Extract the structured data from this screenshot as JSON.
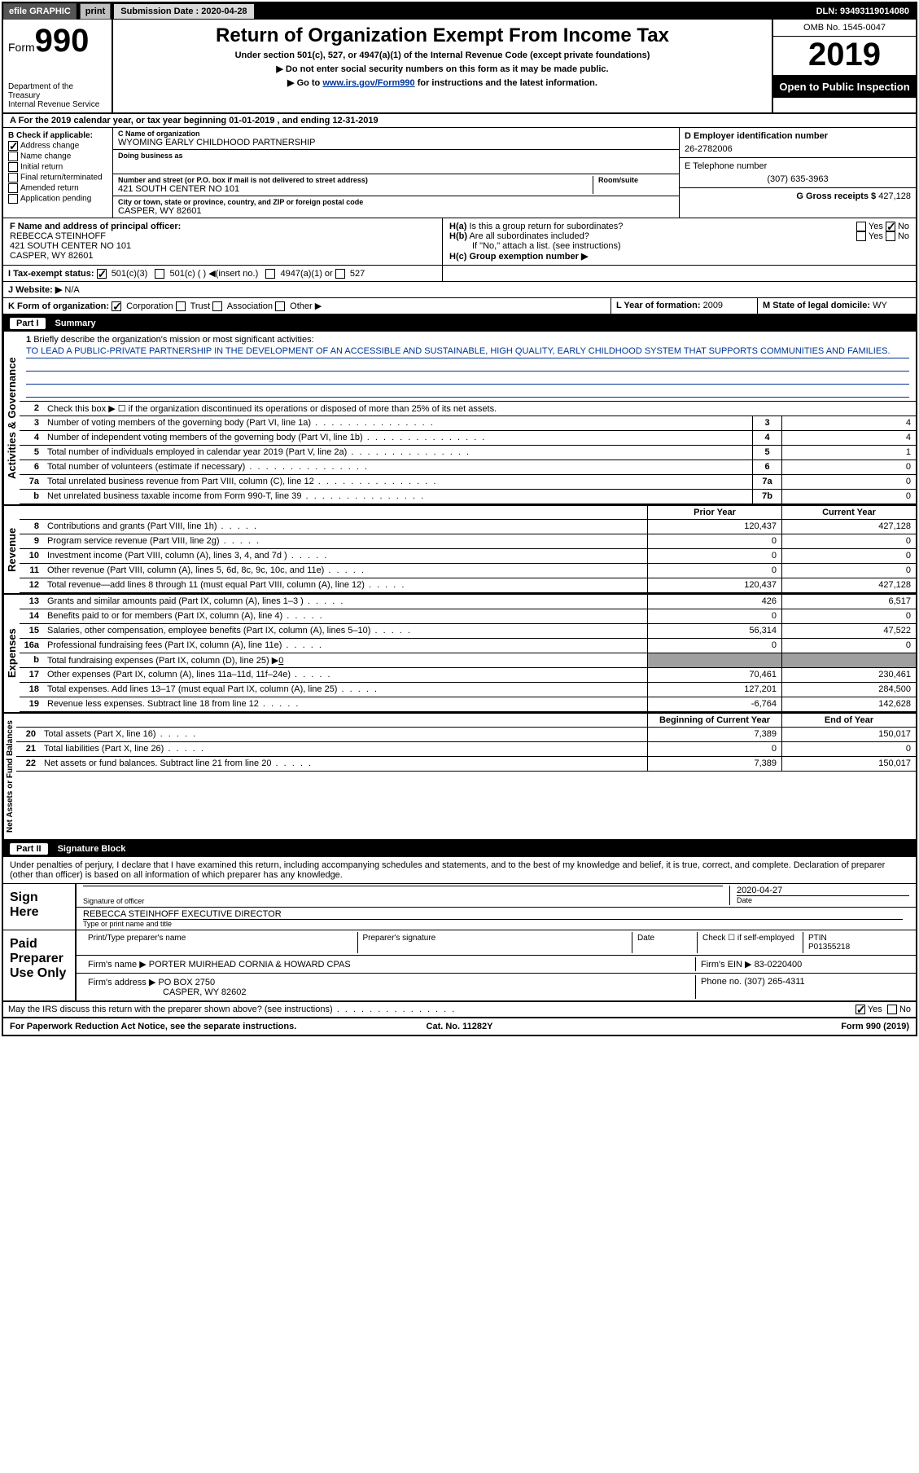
{
  "topbar": {
    "efile": "efile GRAPHIC",
    "print": "print",
    "sub_label": "Submission Date :",
    "sub_date": "2020-04-28",
    "dln_label": "DLN:",
    "dln": "93493119014080"
  },
  "header": {
    "form_word": "Form",
    "form_num": "990",
    "dept1": "Department of the Treasury",
    "dept2": "Internal Revenue Service",
    "title": "Return of Organization Exempt From Income Tax",
    "sub1": "Under section 501(c), 527, or 4947(a)(1) of the Internal Revenue Code (except private foundations)",
    "sub2": "Do not enter social security numbers on this form as it may be made public.",
    "sub3_pre": "Go to ",
    "sub3_link": "www.irs.gov/Form990",
    "sub3_post": " for instructions and the latest information.",
    "omb": "OMB No. 1545-0047",
    "year": "2019",
    "inspection": "Open to Public Inspection"
  },
  "line_a": "A For the 2019 calendar year, or tax year beginning 01-01-2019    , and ending 12-31-2019",
  "boxB": {
    "title": "B Check if applicable:",
    "opts": [
      "Address change",
      "Name change",
      "Initial return",
      "Final return/terminated",
      "Amended return",
      "Application pending"
    ],
    "checked_index": 0
  },
  "boxC": {
    "name_lbl": "C Name of organization",
    "name": "WYOMING EARLY CHILDHOOD PARTNERSHIP",
    "dba_lbl": "Doing business as",
    "dba": "",
    "addr_lbl": "Number and street (or P.O. box if mail is not delivered to street address)",
    "room_lbl": "Room/suite",
    "addr": "421 SOUTH CENTER NO 101",
    "city_lbl": "City or town, state or province, country, and ZIP or foreign postal code",
    "city": "CASPER, WY  82601"
  },
  "boxD": {
    "lbl": "D Employer identification number",
    "val": "26-2782006"
  },
  "boxE": {
    "lbl": "E Telephone number",
    "val": "(307) 635-3963"
  },
  "boxG": {
    "lbl": "G Gross receipts $",
    "val": "427,128"
  },
  "boxF": {
    "lbl": "F  Name and address of principal officer:",
    "name": "REBECCA STEINHOFF",
    "addr": "421 SOUTH CENTER NO 101",
    "city": "CASPER, WY  82601"
  },
  "boxH": {
    "a_lbl": "H(a)  Is this a group return for subordinates?",
    "a_yes": "Yes",
    "a_no": "No",
    "b_lbl": "H(b)  Are all subordinates included?",
    "b_note": "If \"No,\" attach a list. (see instructions)",
    "c_lbl": "H(c)  Group exemption number ▶"
  },
  "boxI": {
    "lbl": "I  Tax-exempt status:",
    "o1": "501(c)(3)",
    "o2": "501(c) (   ) ◀(insert no.)",
    "o3": "4947(a)(1) or",
    "o4": "527"
  },
  "boxJ": {
    "lbl": "J  Website: ▶",
    "val": "N/A"
  },
  "boxK": {
    "lbl": "K Form of organization:",
    "o1": "Corporation",
    "o2": "Trust",
    "o3": "Association",
    "o4": "Other ▶"
  },
  "boxL": {
    "lbl": "L Year of formation:",
    "val": "2009"
  },
  "boxM": {
    "lbl": "M State of legal domicile:",
    "val": "WY"
  },
  "part1": {
    "tag": "Part I",
    "title": "Summary"
  },
  "mission": {
    "n": "1",
    "lbl": "Briefly describe the organization's mission or most significant activities:",
    "text": "TO LEAD A PUBLIC-PRIVATE PARTNERSHIP IN THE DEVELOPMENT OF AN ACCESSIBLE AND SUSTAINABLE, HIGH QUALITY, EARLY CHILDHOOD SYSTEM THAT SUPPORTS COMMUNITIES AND FAMILIES."
  },
  "activities": {
    "vlabel": "Activities & Governance",
    "r2": {
      "n": "2",
      "d": "Check this box ▶ ☐  if the organization discontinued its operations or disposed of more than 25% of its net assets."
    },
    "rows": [
      {
        "n": "3",
        "d": "Number of voting members of the governing body (Part VI, line 1a)",
        "box": "3",
        "val": "4"
      },
      {
        "n": "4",
        "d": "Number of independent voting members of the governing body (Part VI, line 1b)",
        "box": "4",
        "val": "4"
      },
      {
        "n": "5",
        "d": "Total number of individuals employed in calendar year 2019 (Part V, line 2a)",
        "box": "5",
        "val": "1"
      },
      {
        "n": "6",
        "d": "Total number of volunteers (estimate if necessary)",
        "box": "6",
        "val": "0"
      },
      {
        "n": "7a",
        "d": "Total unrelated business revenue from Part VIII, column (C), line 12",
        "box": "7a",
        "val": "0"
      },
      {
        "n": "b",
        "d": "Net unrelated business taxable income from Form 990-T, line 39",
        "box": "7b",
        "val": "0"
      }
    ]
  },
  "revenue": {
    "vlabel": "Revenue",
    "col_prior": "Prior Year",
    "col_curr": "Current Year",
    "rows": [
      {
        "n": "8",
        "d": "Contributions and grants (Part VIII, line 1h)",
        "prior": "120,437",
        "curr": "427,128"
      },
      {
        "n": "9",
        "d": "Program service revenue (Part VIII, line 2g)",
        "prior": "0",
        "curr": "0"
      },
      {
        "n": "10",
        "d": "Investment income (Part VIII, column (A), lines 3, 4, and 7d )",
        "prior": "0",
        "curr": "0"
      },
      {
        "n": "11",
        "d": "Other revenue (Part VIII, column (A), lines 5, 6d, 8c, 9c, 10c, and 11e)",
        "prior": "0",
        "curr": "0"
      },
      {
        "n": "12",
        "d": "Total revenue—add lines 8 through 11 (must equal Part VIII, column (A), line 12)",
        "prior": "120,437",
        "curr": "427,128"
      }
    ]
  },
  "expenses": {
    "vlabel": "Expenses",
    "rows": [
      {
        "n": "13",
        "d": "Grants and similar amounts paid (Part IX, column (A), lines 1–3 )",
        "prior": "426",
        "curr": "6,517"
      },
      {
        "n": "14",
        "d": "Benefits paid to or for members (Part IX, column (A), line 4)",
        "prior": "0",
        "curr": "0"
      },
      {
        "n": "15",
        "d": "Salaries, other compensation, employee benefits (Part IX, column (A), lines 5–10)",
        "prior": "56,314",
        "curr": "47,522"
      },
      {
        "n": "16a",
        "d": "Professional fundraising fees (Part IX, column (A), line 11e)",
        "prior": "0",
        "curr": "0"
      },
      {
        "n": "b",
        "d": "Total fundraising expenses (Part IX, column (D), line 25) ▶",
        "d2": "0",
        "shade": true
      },
      {
        "n": "17",
        "d": "Other expenses (Part IX, column (A), lines 11a–11d, 11f–24e)",
        "prior": "70,461",
        "curr": "230,461"
      },
      {
        "n": "18",
        "d": "Total expenses. Add lines 13–17 (must equal Part IX, column (A), line 25)",
        "prior": "127,201",
        "curr": "284,500"
      },
      {
        "n": "19",
        "d": "Revenue less expenses. Subtract line 18 from line 12",
        "prior": "-6,764",
        "curr": "142,628"
      }
    ]
  },
  "netassets": {
    "vlabel": "Net Assets or Fund Balances",
    "col_prior": "Beginning of Current Year",
    "col_curr": "End of Year",
    "rows": [
      {
        "n": "20",
        "d": "Total assets (Part X, line 16)",
        "prior": "7,389",
        "curr": "150,017"
      },
      {
        "n": "21",
        "d": "Total liabilities (Part X, line 26)",
        "prior": "0",
        "curr": "0"
      },
      {
        "n": "22",
        "d": "Net assets or fund balances. Subtract line 21 from line 20",
        "prior": "7,389",
        "curr": "150,017"
      }
    ]
  },
  "part2": {
    "tag": "Part II",
    "title": "Signature Block"
  },
  "sig_decl": "Under penalties of perjury, I declare that I have examined this return, including accompanying schedules and statements, and to the best of my knowledge and belief, it is true, correct, and complete. Declaration of preparer (other than officer) is based on all information of which preparer has any knowledge.",
  "sign_here": {
    "label": "Sign Here",
    "sig_of_officer": "Signature of officer",
    "date_lbl": "Date",
    "date": "2020-04-27",
    "name_title": "REBECCA STEINHOFF  EXECUTIVE DIRECTOR",
    "type_lbl": "Type or print name and title"
  },
  "paid_prep": {
    "label": "Paid Preparer Use Only",
    "print_name_lbl": "Print/Type preparer's name",
    "prep_sig_lbl": "Preparer's signature",
    "date_lbl": "Date",
    "self_emp": "Check ☐ if self-employed",
    "ptin_lbl": "PTIN",
    "ptin": "P01355218",
    "firm_name_lbl": "Firm's name    ▶",
    "firm_name": "PORTER MUIRHEAD CORNIA & HOWARD CPAS",
    "firm_ein_lbl": "Firm's EIN ▶",
    "firm_ein": "83-0220400",
    "firm_addr_lbl": "Firm's address ▶",
    "firm_addr1": "PO BOX 2750",
    "firm_addr2": "CASPER, WY  82602",
    "phone_lbl": "Phone no.",
    "phone": "(307) 265-4311"
  },
  "discuss": {
    "q": "May the IRS discuss this return with the preparer shown above? (see instructions)",
    "yes": "Yes",
    "no": "No"
  },
  "footer": {
    "left": "For Paperwork Reduction Act Notice, see the separate instructions.",
    "mid": "Cat. No. 11282Y",
    "right": "Form 990 (2019)"
  },
  "colors": {
    "black": "#000000",
    "white": "#ffffff",
    "gray_btn": "#bfbfbf",
    "link": "#003399",
    "shade": "#9f9f9f"
  }
}
